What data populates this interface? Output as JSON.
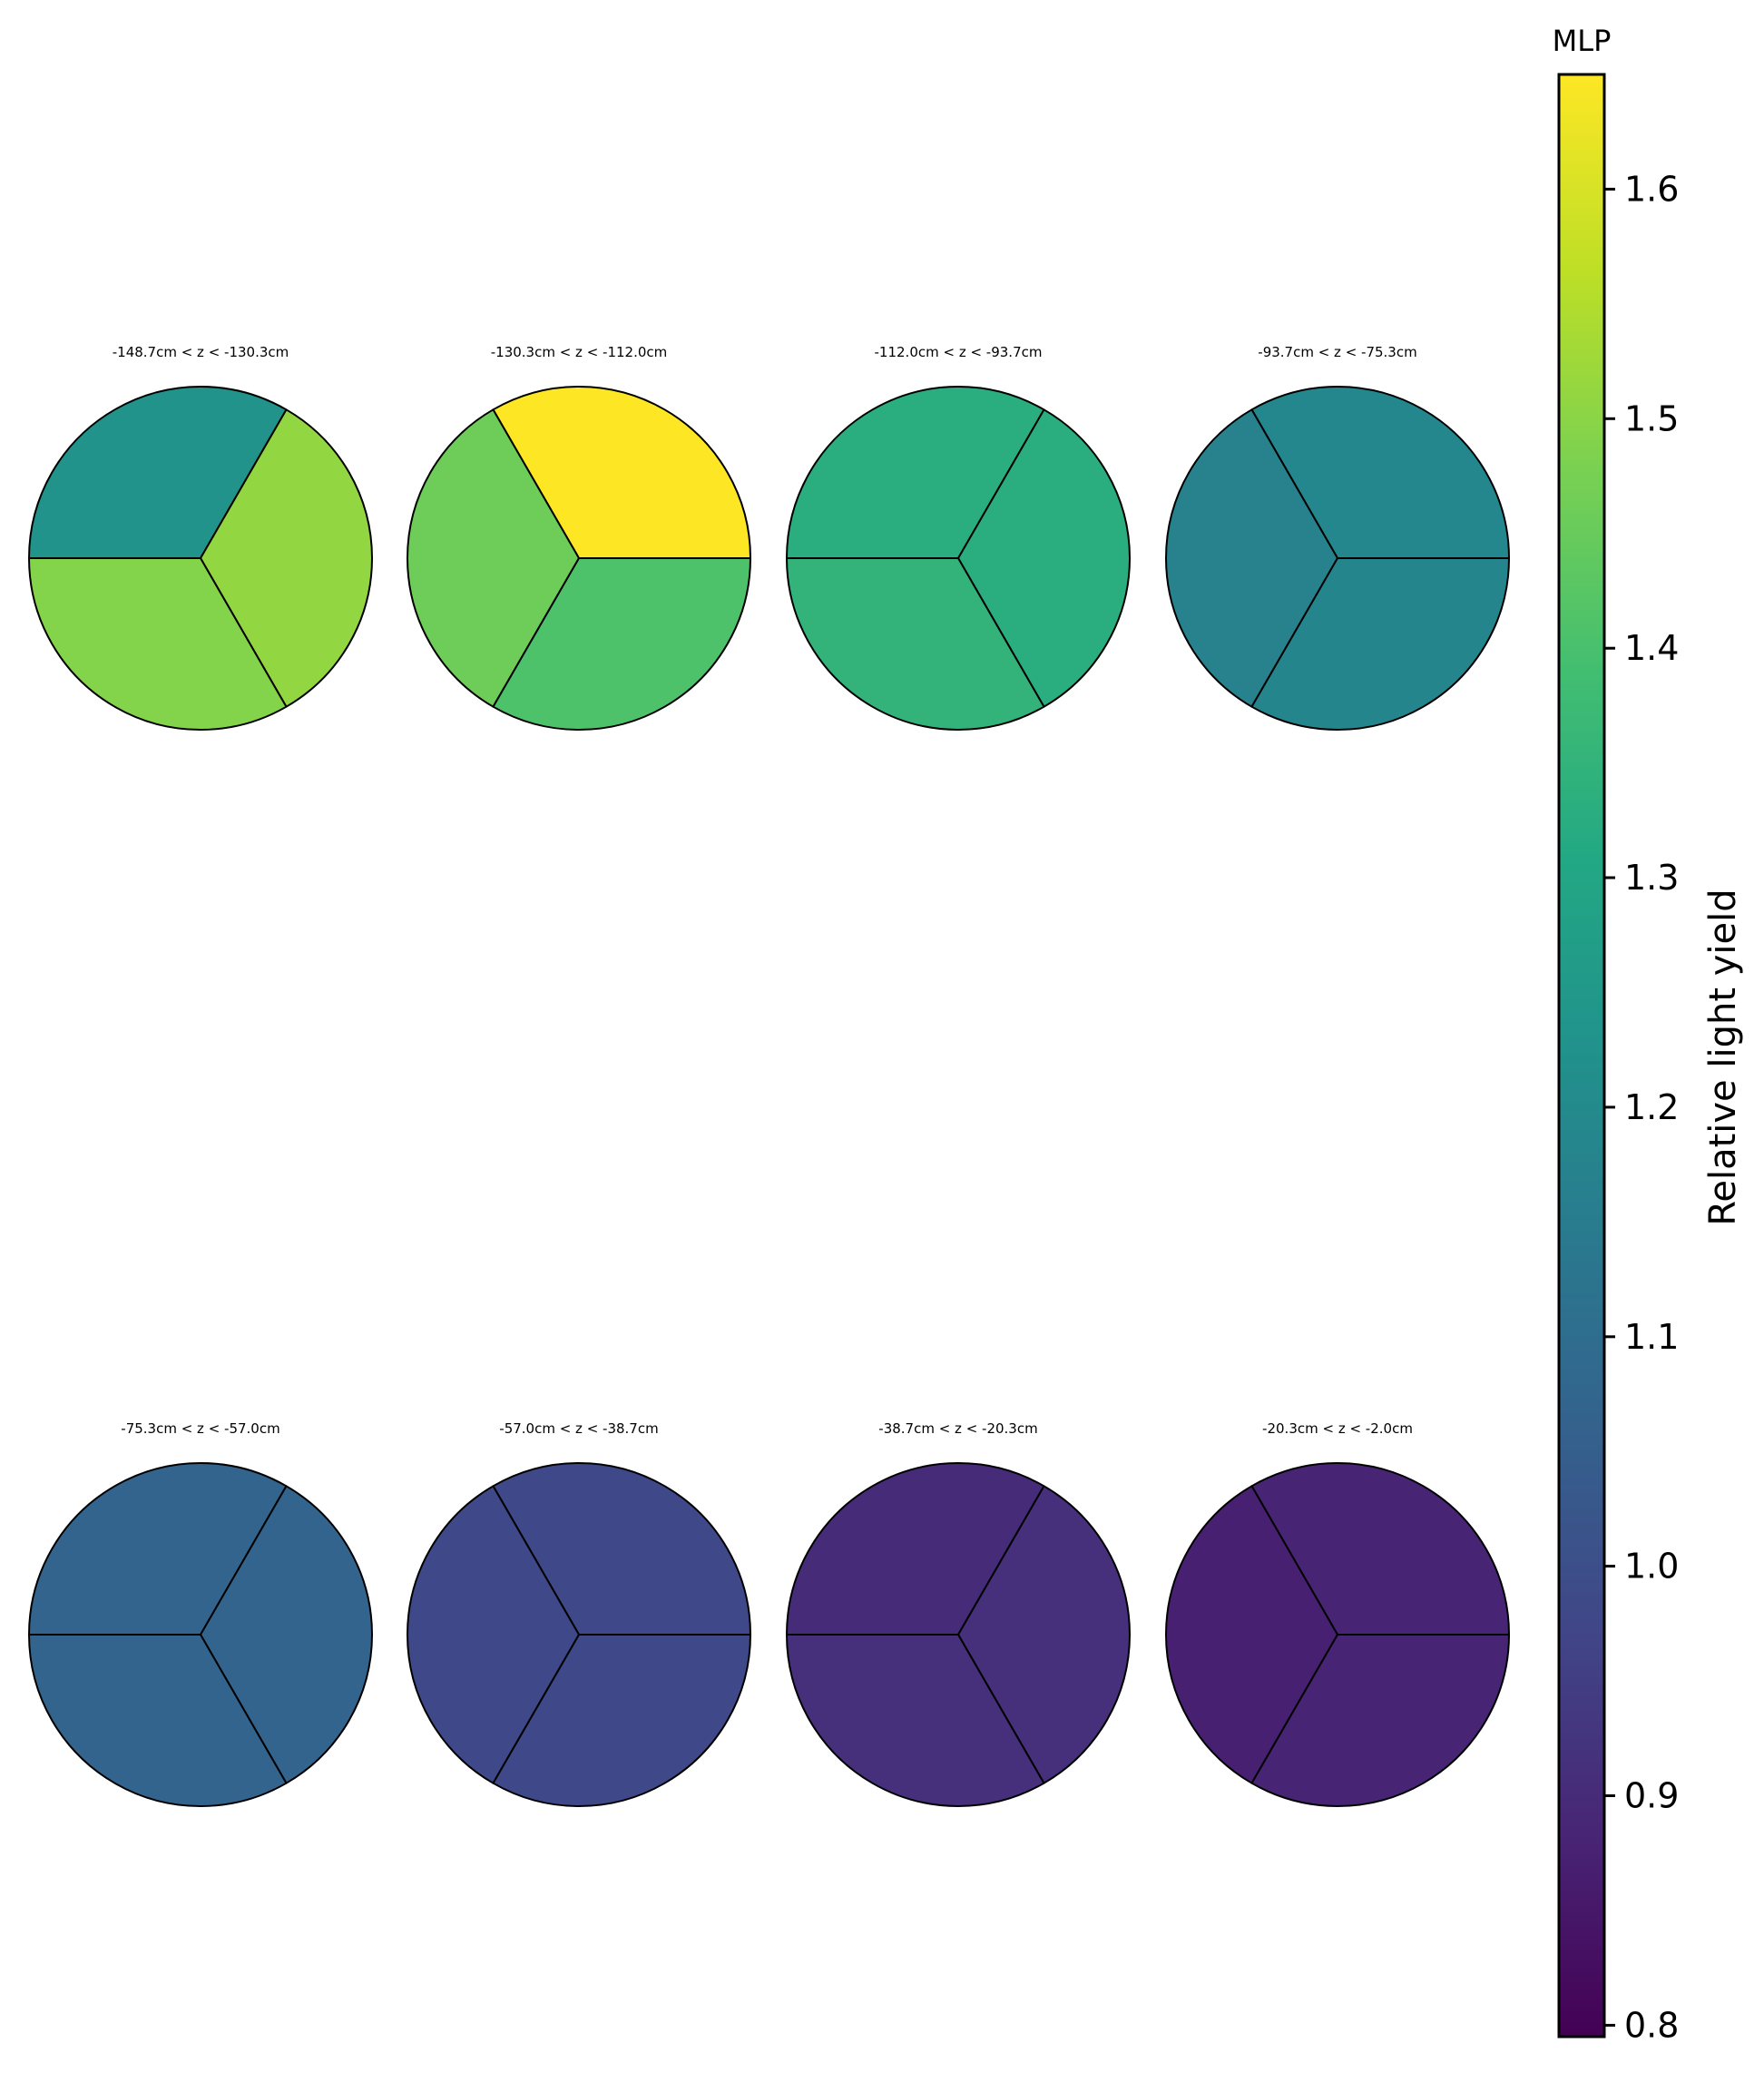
{
  "chart_data": {
    "type": "heatmap",
    "description_shape": "8 circular detector slices, each divided into 3 sectors colored by value",
    "colormap": "viridis",
    "panels": [
      {
        "title": "-148.7cm < z < -130.3cm",
        "sectors": [
          1.23,
          1.51,
          1.49
        ]
      },
      {
        "title": "-130.3cm < z < -112.0cm",
        "sectors": [
          1.65,
          1.46,
          1.41
        ]
      },
      {
        "title": "-112.0cm < z < -93.7cm",
        "sectors": [
          1.33,
          1.33,
          1.35
        ]
      },
      {
        "title": "-93.7cm < z < -75.3cm",
        "sectors": [
          1.19,
          1.17,
          1.18
        ]
      },
      {
        "title": "-75.3cm < z < -57.0cm",
        "sectors": [
          1.07,
          1.07,
          1.07
        ]
      },
      {
        "title": "-57.0cm < z < -38.7cm",
        "sectors": [
          0.98,
          0.98,
          0.98
        ]
      },
      {
        "title": "-38.7cm < z < -20.3cm",
        "sectors": [
          0.9,
          0.91,
          0.91
        ]
      },
      {
        "title": "-20.3cm < z < -2.0cm",
        "sectors": [
          0.88,
          0.87,
          0.88
        ]
      }
    ],
    "colorbar": {
      "title": "MLP",
      "label": "Relative light yield",
      "range": [
        0.795,
        1.65
      ],
      "ticks": [
        0.8,
        0.9,
        1.0,
        1.1,
        1.2,
        1.3,
        1.4,
        1.5,
        1.6
      ],
      "tick_labels": [
        "0.8",
        "0.9",
        "1.0",
        "1.1",
        "1.2",
        "1.3",
        "1.4",
        "1.5",
        "1.6"
      ]
    }
  }
}
